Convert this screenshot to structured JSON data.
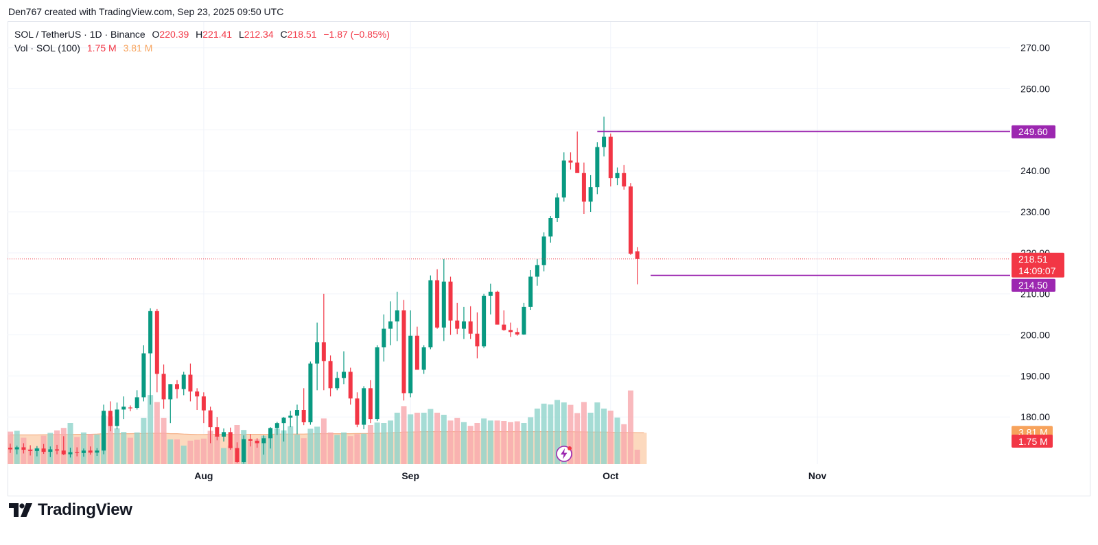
{
  "attribution": "Den767 created with TradingView.com, Sep 23, 2025 09:50 UTC",
  "legend": {
    "symbol": "SOL / TetherUS · 1D · Binance",
    "o_label": "O",
    "o_value": "220.39",
    "h_label": "H",
    "h_value": "221.41",
    "l_label": "L",
    "l_value": "212.34",
    "c_label": "C",
    "c_value": "218.51",
    "change": "−1.87 (−0.85%)",
    "volume_label": "Vol · SOL (100)",
    "volume_value": "1.75 M",
    "volume_ma_value": "3.81 M"
  },
  "colors": {
    "up": "#089981",
    "down": "#f23645",
    "vol_up": "#8fd3cb",
    "vol_down": "#f7a8ad",
    "vol_ma_fill": "#fcd2b3",
    "vol_ma_line": "#f5b087",
    "level_line": "#9c27b0",
    "grid": "#f0f3fa",
    "axis_text": "#131722"
  },
  "brand": "TradingView",
  "chart_data": {
    "type": "candlestick",
    "symbol": "SOL / TetherUS",
    "interval": "1D",
    "exchange": "Binance",
    "y_ticks": [
      "270.00",
      "260.00",
      "250.00",
      "240.00",
      "230.00",
      "220.00",
      "210.00",
      "200.00",
      "190.00",
      "180.00"
    ],
    "ylim": [
      168.5,
      276.3
    ],
    "x_labels": [
      {
        "label": "Aug",
        "index": 29
      },
      {
        "label": "Sep",
        "index": 60
      },
      {
        "label": "Oct",
        "index": 90
      },
      {
        "label": "Nov",
        "index": 121
      }
    ],
    "candles": [
      {
        "o": 172.5,
        "h": 173.5,
        "l": 171.2,
        "c": 172.1,
        "v": 3.95
      },
      {
        "o": 172.1,
        "h": 173.0,
        "l": 170.9,
        "c": 172.6,
        "v": 4.05
      },
      {
        "o": 172.6,
        "h": 173.6,
        "l": 171.1,
        "c": 172.0,
        "v": 3.2
      },
      {
        "o": 172.0,
        "h": 173.1,
        "l": 170.6,
        "c": 171.7,
        "v": 1.85
      },
      {
        "o": 171.7,
        "h": 172.9,
        "l": 170.4,
        "c": 172.3,
        "v": 1.95
      },
      {
        "o": 172.3,
        "h": 173.4,
        "l": 171.0,
        "c": 171.5,
        "v": 3.45
      },
      {
        "o": 171.5,
        "h": 172.8,
        "l": 170.2,
        "c": 172.1,
        "v": 3.8
      },
      {
        "o": 172.1,
        "h": 173.2,
        "l": 170.9,
        "c": 171.8,
        "v": 4.1
      },
      {
        "o": 171.8,
        "h": 175.3,
        "l": 170.7,
        "c": 170.9,
        "v": 4.4
      },
      {
        "o": 170.9,
        "h": 172.5,
        "l": 170.1,
        "c": 171.4,
        "v": 5.0
      },
      {
        "o": 171.4,
        "h": 172.6,
        "l": 170.4,
        "c": 171.2,
        "v": 3.3
      },
      {
        "o": 171.2,
        "h": 172.3,
        "l": 170.3,
        "c": 171.8,
        "v": 3.85
      },
      {
        "o": 171.8,
        "h": 172.8,
        "l": 170.8,
        "c": 171.3,
        "v": 3.65
      },
      {
        "o": 171.3,
        "h": 172.4,
        "l": 170.5,
        "c": 171.8,
        "v": 3.6
      },
      {
        "o": 171.8,
        "h": 183.0,
        "l": 170.9,
        "c": 181.5,
        "v": 5.9
      },
      {
        "o": 181.5,
        "h": 183.8,
        "l": 176.5,
        "c": 177.8,
        "v": 5.8
      },
      {
        "o": 177.8,
        "h": 183.5,
        "l": 177.0,
        "c": 181.8,
        "v": 4.35
      },
      {
        "o": 181.8,
        "h": 185.0,
        "l": 179.5,
        "c": 182.5,
        "v": 3.9
      },
      {
        "o": 182.3,
        "h": 182.8,
        "l": 181.4,
        "c": 182.2,
        "v": 3.2
      },
      {
        "o": 182.2,
        "h": 186.5,
        "l": 181.8,
        "c": 184.8,
        "v": 3.85
      },
      {
        "o": 184.8,
        "h": 197.5,
        "l": 183.8,
        "c": 195.5,
        "v": 5.6
      },
      {
        "o": 195.5,
        "h": 206.5,
        "l": 183.0,
        "c": 205.8,
        "v": 8.4
      },
      {
        "o": 205.8,
        "h": 206.3,
        "l": 186.0,
        "c": 190.5,
        "v": 7.55
      },
      {
        "o": 190.5,
        "h": 192.8,
        "l": 182.0,
        "c": 184.3,
        "v": 5.6
      },
      {
        "o": 184.3,
        "h": 188.0,
        "l": 178.5,
        "c": 188.0,
        "v": 3.0
      },
      {
        "o": 188.0,
        "h": 189.0,
        "l": 184.5,
        "c": 186.8,
        "v": 3.0
      },
      {
        "o": 186.8,
        "h": 191.0,
        "l": 185.3,
        "c": 190.3,
        "v": 2.25
      },
      {
        "o": 190.3,
        "h": 193.0,
        "l": 183.8,
        "c": 186.2,
        "v": 2.85
      },
      {
        "o": 186.2,
        "h": 187.0,
        "l": 181.7,
        "c": 185.0,
        "v": 2.95
      },
      {
        "o": 185.0,
        "h": 186.0,
        "l": 178.5,
        "c": 181.6,
        "v": 3.1
      },
      {
        "o": 181.6,
        "h": 182.5,
        "l": 173.6,
        "c": 177.5,
        "v": 4.05
      },
      {
        "o": 177.5,
        "h": 180.0,
        "l": 174.3,
        "c": 175.2,
        "v": 3.5
      },
      {
        "o": 175.2,
        "h": 177.2,
        "l": 174.0,
        "c": 176.3,
        "v": 1.95
      },
      {
        "o": 176.3,
        "h": 177.4,
        "l": 172.0,
        "c": 172.4,
        "v": 2.25
      },
      {
        "o": 172.4,
        "h": 173.8,
        "l": 168.8,
        "c": 169.0,
        "v": 4.75
      },
      {
        "o": 169.0,
        "h": 175.5,
        "l": 168.6,
        "c": 174.6,
        "v": 4.15
      },
      {
        "o": 174.6,
        "h": 175.8,
        "l": 172.8,
        "c": 174.2,
        "v": 2.8
      },
      {
        "o": 174.2,
        "h": 174.8,
        "l": 172.5,
        "c": 173.6,
        "v": 3.05
      },
      {
        "o": 173.6,
        "h": 175.5,
        "l": 170.8,
        "c": 174.8,
        "v": 3.45
      },
      {
        "o": 174.8,
        "h": 177.5,
        "l": 172.3,
        "c": 177.3,
        "v": 3.55
      },
      {
        "o": 177.3,
        "h": 178.8,
        "l": 175.6,
        "c": 178.5,
        "v": 4.3
      },
      {
        "o": 178.5,
        "h": 180.0,
        "l": 174.0,
        "c": 179.8,
        "v": 4.1
      },
      {
        "o": 179.8,
        "h": 181.5,
        "l": 177.5,
        "c": 180.3,
        "v": 4.6
      },
      {
        "o": 180.3,
        "h": 183.0,
        "l": 175.8,
        "c": 181.7,
        "v": 3.6
      },
      {
        "o": 181.7,
        "h": 187.0,
        "l": 178.0,
        "c": 178.7,
        "v": 3.15
      },
      {
        "o": 178.7,
        "h": 193.5,
        "l": 178.1,
        "c": 193.0,
        "v": 4.3
      },
      {
        "o": 193.0,
        "h": 203.0,
        "l": 186.5,
        "c": 198.2,
        "v": 4.55
      },
      {
        "o": 198.2,
        "h": 210.0,
        "l": 186.5,
        "c": 193.6,
        "v": 5.55
      },
      {
        "o": 193.6,
        "h": 195.0,
        "l": 185.0,
        "c": 187.0,
        "v": 3.85
      },
      {
        "o": 187.0,
        "h": 191.0,
        "l": 186.5,
        "c": 189.5,
        "v": 3.55
      },
      {
        "o": 189.5,
        "h": 196.0,
        "l": 188.0,
        "c": 191.0,
        "v": 3.85
      },
      {
        "o": 191.0,
        "h": 192.0,
        "l": 183.0,
        "c": 184.5,
        "v": 3.4
      },
      {
        "o": 184.5,
        "h": 186.0,
        "l": 177.5,
        "c": 178.1,
        "v": 3.65
      },
      {
        "o": 178.1,
        "h": 187.5,
        "l": 177.0,
        "c": 187.0,
        "v": 3.7
      },
      {
        "o": 187.0,
        "h": 189.0,
        "l": 178.5,
        "c": 179.5,
        "v": 4.75
      },
      {
        "o": 179.5,
        "h": 197.5,
        "l": 179.0,
        "c": 197.0,
        "v": 5.05
      },
      {
        "o": 197.0,
        "h": 205.0,
        "l": 193.5,
        "c": 201.5,
        "v": 5.0
      },
      {
        "o": 201.5,
        "h": 208.2,
        "l": 197.5,
        "c": 203.3,
        "v": 5.3
      },
      {
        "o": 203.3,
        "h": 210.5,
        "l": 198.5,
        "c": 206.0,
        "v": 6.25
      },
      {
        "o": 206.0,
        "h": 208.5,
        "l": 184.0,
        "c": 185.8,
        "v": 7.05
      },
      {
        "o": 185.8,
        "h": 206.0,
        "l": 184.8,
        "c": 199.8,
        "v": 6.05
      },
      {
        "o": 199.8,
        "h": 202.0,
        "l": 191.5,
        "c": 191.5,
        "v": 6.25
      },
      {
        "o": 191.5,
        "h": 197.5,
        "l": 190.5,
        "c": 197.0,
        "v": 6.25
      },
      {
        "o": 197.0,
        "h": 214.5,
        "l": 196.5,
        "c": 213.3,
        "v": 6.7
      },
      {
        "o": 213.3,
        "h": 216.0,
        "l": 201.5,
        "c": 201.8,
        "v": 6.25
      },
      {
        "o": 201.8,
        "h": 218.5,
        "l": 198.5,
        "c": 213.0,
        "v": 6.0
      },
      {
        "o": 213.0,
        "h": 214.2,
        "l": 200.0,
        "c": 203.5,
        "v": 5.3
      },
      {
        "o": 203.5,
        "h": 207.8,
        "l": 200.2,
        "c": 201.5,
        "v": 5.6
      },
      {
        "o": 201.5,
        "h": 206.8,
        "l": 199.0,
        "c": 203.3,
        "v": 5.1
      },
      {
        "o": 203.3,
        "h": 207.0,
        "l": 199.0,
        "c": 200.3,
        "v": 4.65
      },
      {
        "o": 200.3,
        "h": 205.5,
        "l": 194.3,
        "c": 197.2,
        "v": 5.0
      },
      {
        "o": 197.2,
        "h": 210.0,
        "l": 196.8,
        "c": 209.5,
        "v": 5.55
      },
      {
        "o": 209.5,
        "h": 212.5,
        "l": 205.0,
        "c": 210.5,
        "v": 5.3
      },
      {
        "o": 210.5,
        "h": 210.8,
        "l": 202.5,
        "c": 202.5,
        "v": 5.3
      },
      {
        "o": 202.5,
        "h": 206.0,
        "l": 201.0,
        "c": 201.2,
        "v": 5.25
      },
      {
        "o": 201.2,
        "h": 203.0,
        "l": 199.5,
        "c": 200.7,
        "v": 5.1
      },
      {
        "o": 200.7,
        "h": 201.7,
        "l": 199.8,
        "c": 200.1,
        "v": 5.2
      },
      {
        "o": 200.1,
        "h": 207.8,
        "l": 200.0,
        "c": 206.8,
        "v": 5.0
      },
      {
        "o": 206.8,
        "h": 215.8,
        "l": 206.1,
        "c": 214.2,
        "v": 5.7
      },
      {
        "o": 214.2,
        "h": 218.5,
        "l": 212.0,
        "c": 217.0,
        "v": 6.75
      },
      {
        "o": 217.0,
        "h": 225.0,
        "l": 215.5,
        "c": 224.0,
        "v": 7.35
      },
      {
        "o": 224.0,
        "h": 229.0,
        "l": 222.5,
        "c": 228.5,
        "v": 7.25
      },
      {
        "o": 228.5,
        "h": 234.5,
        "l": 227.5,
        "c": 233.5,
        "v": 7.8
      },
      {
        "o": 233.5,
        "h": 244.5,
        "l": 232.5,
        "c": 242.5,
        "v": 7.5
      },
      {
        "o": 242.5,
        "h": 244.5,
        "l": 240.3,
        "c": 242.0,
        "v": 7.2
      },
      {
        "o": 242.0,
        "h": 249.6,
        "l": 240.5,
        "c": 239.5,
        "v": 6.2
      },
      {
        "o": 239.5,
        "h": 242.0,
        "l": 229.5,
        "c": 232.5,
        "v": 7.55
      },
      {
        "o": 232.5,
        "h": 239.0,
        "l": 230.0,
        "c": 236.0,
        "v": 6.25
      },
      {
        "o": 236.0,
        "h": 247.0,
        "l": 234.3,
        "c": 245.8,
        "v": 7.5
      },
      {
        "o": 245.8,
        "h": 253.2,
        "l": 243.5,
        "c": 248.3,
        "v": 6.75
      },
      {
        "o": 248.3,
        "h": 249.1,
        "l": 236.2,
        "c": 238.2,
        "v": 6.5
      },
      {
        "o": 238.2,
        "h": 240.8,
        "l": 236.5,
        "c": 239.5,
        "v": 5.65
      },
      {
        "o": 239.5,
        "h": 241.4,
        "l": 235.4,
        "c": 236.2,
        "v": 4.85
      },
      {
        "o": 236.2,
        "h": 237.0,
        "l": 219.5,
        "c": 219.8,
        "v": 8.95
      },
      {
        "o": 220.39,
        "h": 221.41,
        "l": 212.34,
        "c": 218.51,
        "v": 1.75
      }
    ],
    "volume": {
      "label": "Vol · SOL (100)",
      "current": "1.75 M",
      "ma_value": "3.81 M",
      "ma": [
        3.55,
        3.55,
        3.55,
        3.55,
        3.55,
        3.58,
        3.58,
        3.6,
        3.6,
        3.6,
        3.62,
        3.62,
        3.62,
        3.65,
        3.7,
        3.7,
        3.7,
        3.7,
        3.7,
        3.72,
        3.72,
        3.75,
        3.75,
        3.75,
        3.7,
        3.7,
        3.65,
        3.62,
        3.6,
        3.6,
        3.62,
        3.62,
        3.6,
        3.6,
        3.6,
        3.62,
        3.62,
        3.62,
        3.62,
        3.62,
        3.65,
        3.65,
        3.65,
        3.65,
        3.65,
        3.68,
        3.7,
        3.7,
        3.7,
        3.7,
        3.7,
        3.7,
        3.72,
        3.72,
        3.72,
        3.75,
        3.78,
        3.8,
        3.85,
        3.9,
        3.9,
        3.92,
        3.95,
        3.95,
        3.95,
        3.95,
        3.95,
        3.95,
        3.95,
        3.95,
        3.95,
        3.95,
        3.95,
        3.95,
        3.95,
        3.95,
        3.95,
        3.95,
        3.95,
        3.95,
        3.95,
        3.95,
        3.95,
        3.95,
        3.95,
        3.92,
        3.92,
        3.9,
        3.9,
        3.9,
        3.88,
        3.85,
        3.85,
        3.85,
        3.83,
        3.81
      ]
    },
    "horizontal_levels": [
      {
        "value": 249.6,
        "label": "249.60",
        "from_index": 88
      },
      {
        "value": 214.5,
        "label": "214.50",
        "from_index": 96
      }
    ],
    "current_price": {
      "value": 218.51,
      "label": "218.51",
      "countdown": "14:09:07"
    }
  }
}
